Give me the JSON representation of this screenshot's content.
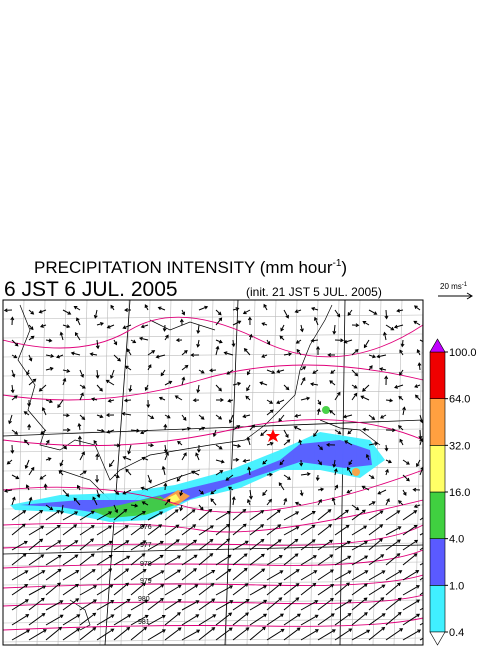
{
  "title": {
    "text": "PRECIPITATION INTENSITY (mm hour",
    "exponent": "-1",
    "close": ")"
  },
  "valid_time": "6 JST 6 JUL. 2005",
  "init_time": "(init. 21 JST 5 JUL. 2005)",
  "vector_scale": {
    "text": "20 ms",
    "exponent": "-1"
  },
  "colorbar": {
    "levels": [
      {
        "value": 0.4,
        "label": "0.4"
      },
      {
        "value": 1,
        "label": "1.0"
      },
      {
        "value": 4,
        "label": "4.0"
      },
      {
        "value": 16,
        "label": "16.0"
      },
      {
        "value": 32,
        "label": "32.0"
      },
      {
        "value": 64,
        "label": "64.0"
      },
      {
        "value": 100,
        "label": "100.0"
      }
    ],
    "colors": [
      "#40f0ff",
      "#5a5aff",
      "#40d040",
      "#ffff66",
      "#ffa040",
      "#f00000"
    ],
    "over_color": "#c000ff",
    "under_color": "#ffffff"
  },
  "contour_labels": [
    "976",
    "977",
    "978",
    "979",
    "980",
    "981"
  ]
}
